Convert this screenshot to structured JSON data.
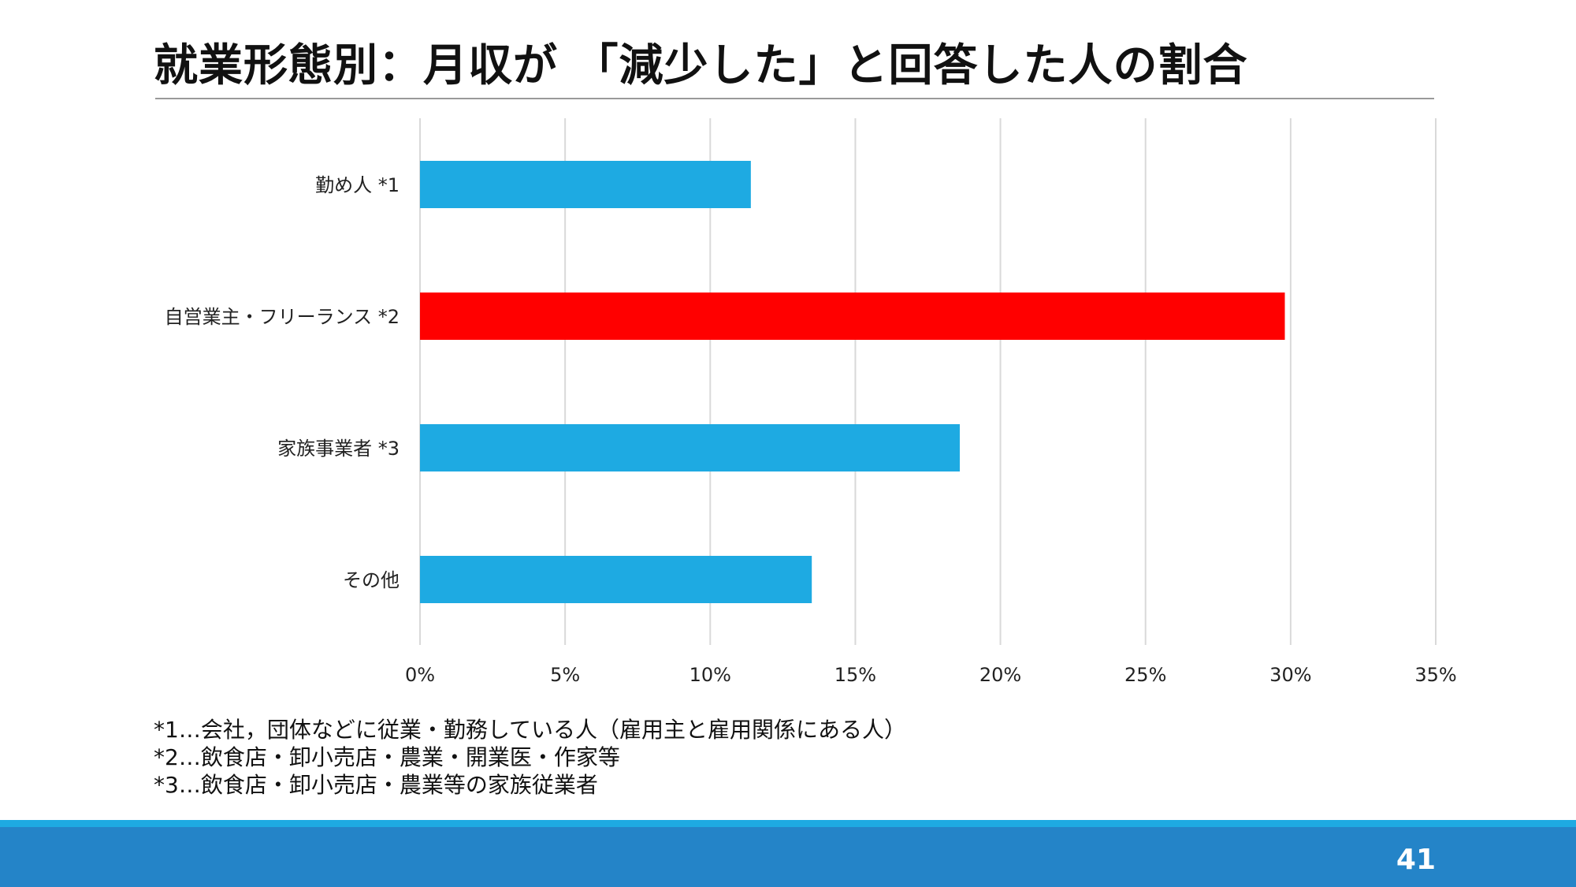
{
  "slide": {
    "title": "就業形態別：月収が 「減少した」と回答した人の割合",
    "notes": [
      "*1…会社，団体などに従業・勤務している人（雇用主と雇用関係にある人）",
      "*2…飲食店・卸小売店・農業・開業医・作家等",
      "*3…飲食店・卸小売店・農業等の家族従業者"
    ],
    "page_number": "41"
  },
  "colors": {
    "bar": "#1eaae2",
    "highlight": "#ff0000",
    "grid": "#d9d9d9",
    "footer_top": "#1eaae2",
    "footer": "#2484c8"
  },
  "chart_data": {
    "type": "bar",
    "orientation": "horizontal",
    "categories": [
      "勤め人 *1",
      "自営業主・フリーランス *2",
      "家族事業者 *3",
      "その他"
    ],
    "values": [
      0.114,
      0.298,
      0.186,
      0.135
    ],
    "highlight_index": 1,
    "xlim": [
      0,
      0.35
    ],
    "ticks": [
      0,
      0.05,
      0.1,
      0.15,
      0.2,
      0.25,
      0.3,
      0.35
    ],
    "tick_labels": [
      "0%",
      "5%",
      "10%",
      "15%",
      "20%",
      "25%",
      "30%",
      "35%"
    ],
    "grid": true,
    "legend": "none"
  }
}
